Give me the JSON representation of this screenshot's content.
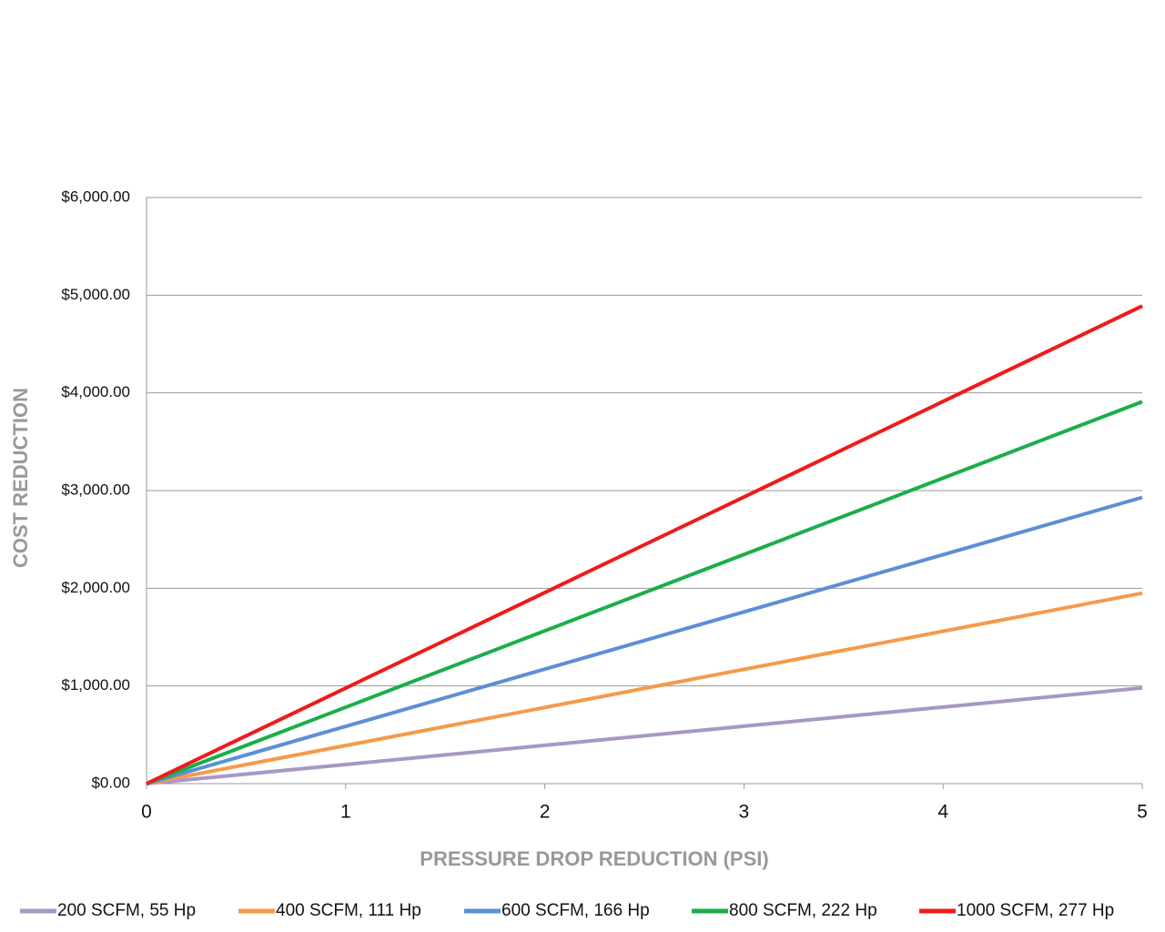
{
  "chart_data": {
    "type": "line",
    "x_label": "PRESSURE DROP REDUCTION (PSI)",
    "y_label": "COST REDUCTION",
    "x": [
      0,
      1,
      2,
      3,
      4,
      5
    ],
    "xlim": [
      0,
      5
    ],
    "xticks": [
      0,
      1,
      2,
      3,
      4,
      5
    ],
    "ylim": [
      0,
      6000
    ],
    "yticks": [
      {
        "value": 0,
        "label": "$0.00"
      },
      {
        "value": 1000,
        "label": "$1,000.00"
      },
      {
        "value": 2000,
        "label": "$2,000.00"
      },
      {
        "value": 3000,
        "label": "$3,000.00"
      },
      {
        "value": 4000,
        "label": "$4,000.00"
      },
      {
        "value": 5000,
        "label": "$5,000.00"
      },
      {
        "value": 6000,
        "label": "$6,000.00"
      }
    ],
    "grid": true,
    "legend": "bottom",
    "series": [
      {
        "name": "200 SCFM, 55 Hp",
        "color": "#a897c6",
        "values": [
          0,
          196,
          392,
          588,
          784,
          980
        ]
      },
      {
        "name": "400 SCFM, 111 Hp",
        "color": "#f59a4a",
        "values": [
          0,
          390,
          780,
          1170,
          1560,
          1950
        ]
      },
      {
        "name": "600 SCFM, 166 Hp",
        "color": "#5b8fd6",
        "values": [
          0,
          586,
          1172,
          1758,
          2344,
          2930
        ]
      },
      {
        "name": "800 SCFM, 222 Hp",
        "color": "#1aae4a",
        "values": [
          0,
          782,
          1564,
          2346,
          3128,
          3910
        ]
      },
      {
        "name": "1000 SCFM, 277 Hp",
        "color": "#f01a1a",
        "values": [
          0,
          978,
          1956,
          2934,
          3912,
          4890
        ]
      }
    ]
  }
}
